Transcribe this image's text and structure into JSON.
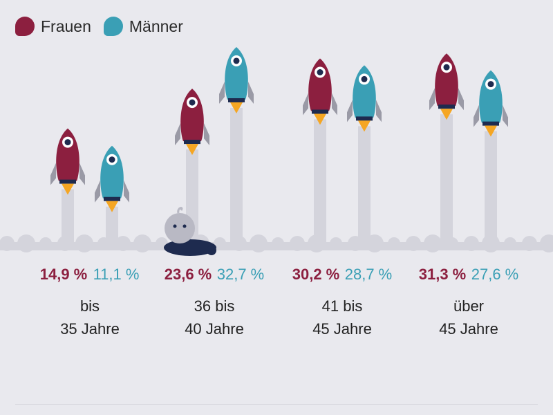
{
  "legend": {
    "women_label": "Frauen",
    "men_label": "Männer"
  },
  "colors": {
    "women": "#8c1f3f",
    "men": "#3a9fb5",
    "background": "#e9e9ee",
    "exhaust": "#d4d4dc",
    "flame": "#f5a623",
    "window": "#1e2b4f"
  },
  "chart_data": {
    "type": "bar",
    "categories": [
      "bis 35 Jahre",
      "36 bis 40 Jahre",
      "41 bis 45 Jahre",
      "über 45 Jahre"
    ],
    "category_lines": [
      [
        "bis",
        "35 Jahre"
      ],
      [
        "36 bis",
        "40 Jahre"
      ],
      [
        "41 bis",
        "45 Jahre"
      ],
      [
        "über",
        "45 Jahre"
      ]
    ],
    "series": [
      {
        "name": "Frauen",
        "values": [
          14.9,
          23.6,
          30.2,
          31.3
        ],
        "labels": [
          "14,9 %",
          "23,6 %",
          "30,2 %",
          "31,3 %"
        ]
      },
      {
        "name": "Männer",
        "values": [
          11.1,
          32.7,
          28.7,
          27.6
        ],
        "labels": [
          "11,1 %",
          "32,7 %",
          "28,7 %",
          "27,6 %"
        ]
      }
    ],
    "ylim": [
      0,
      35
    ],
    "legend_position": "top-left",
    "mark_style": "rockets"
  }
}
